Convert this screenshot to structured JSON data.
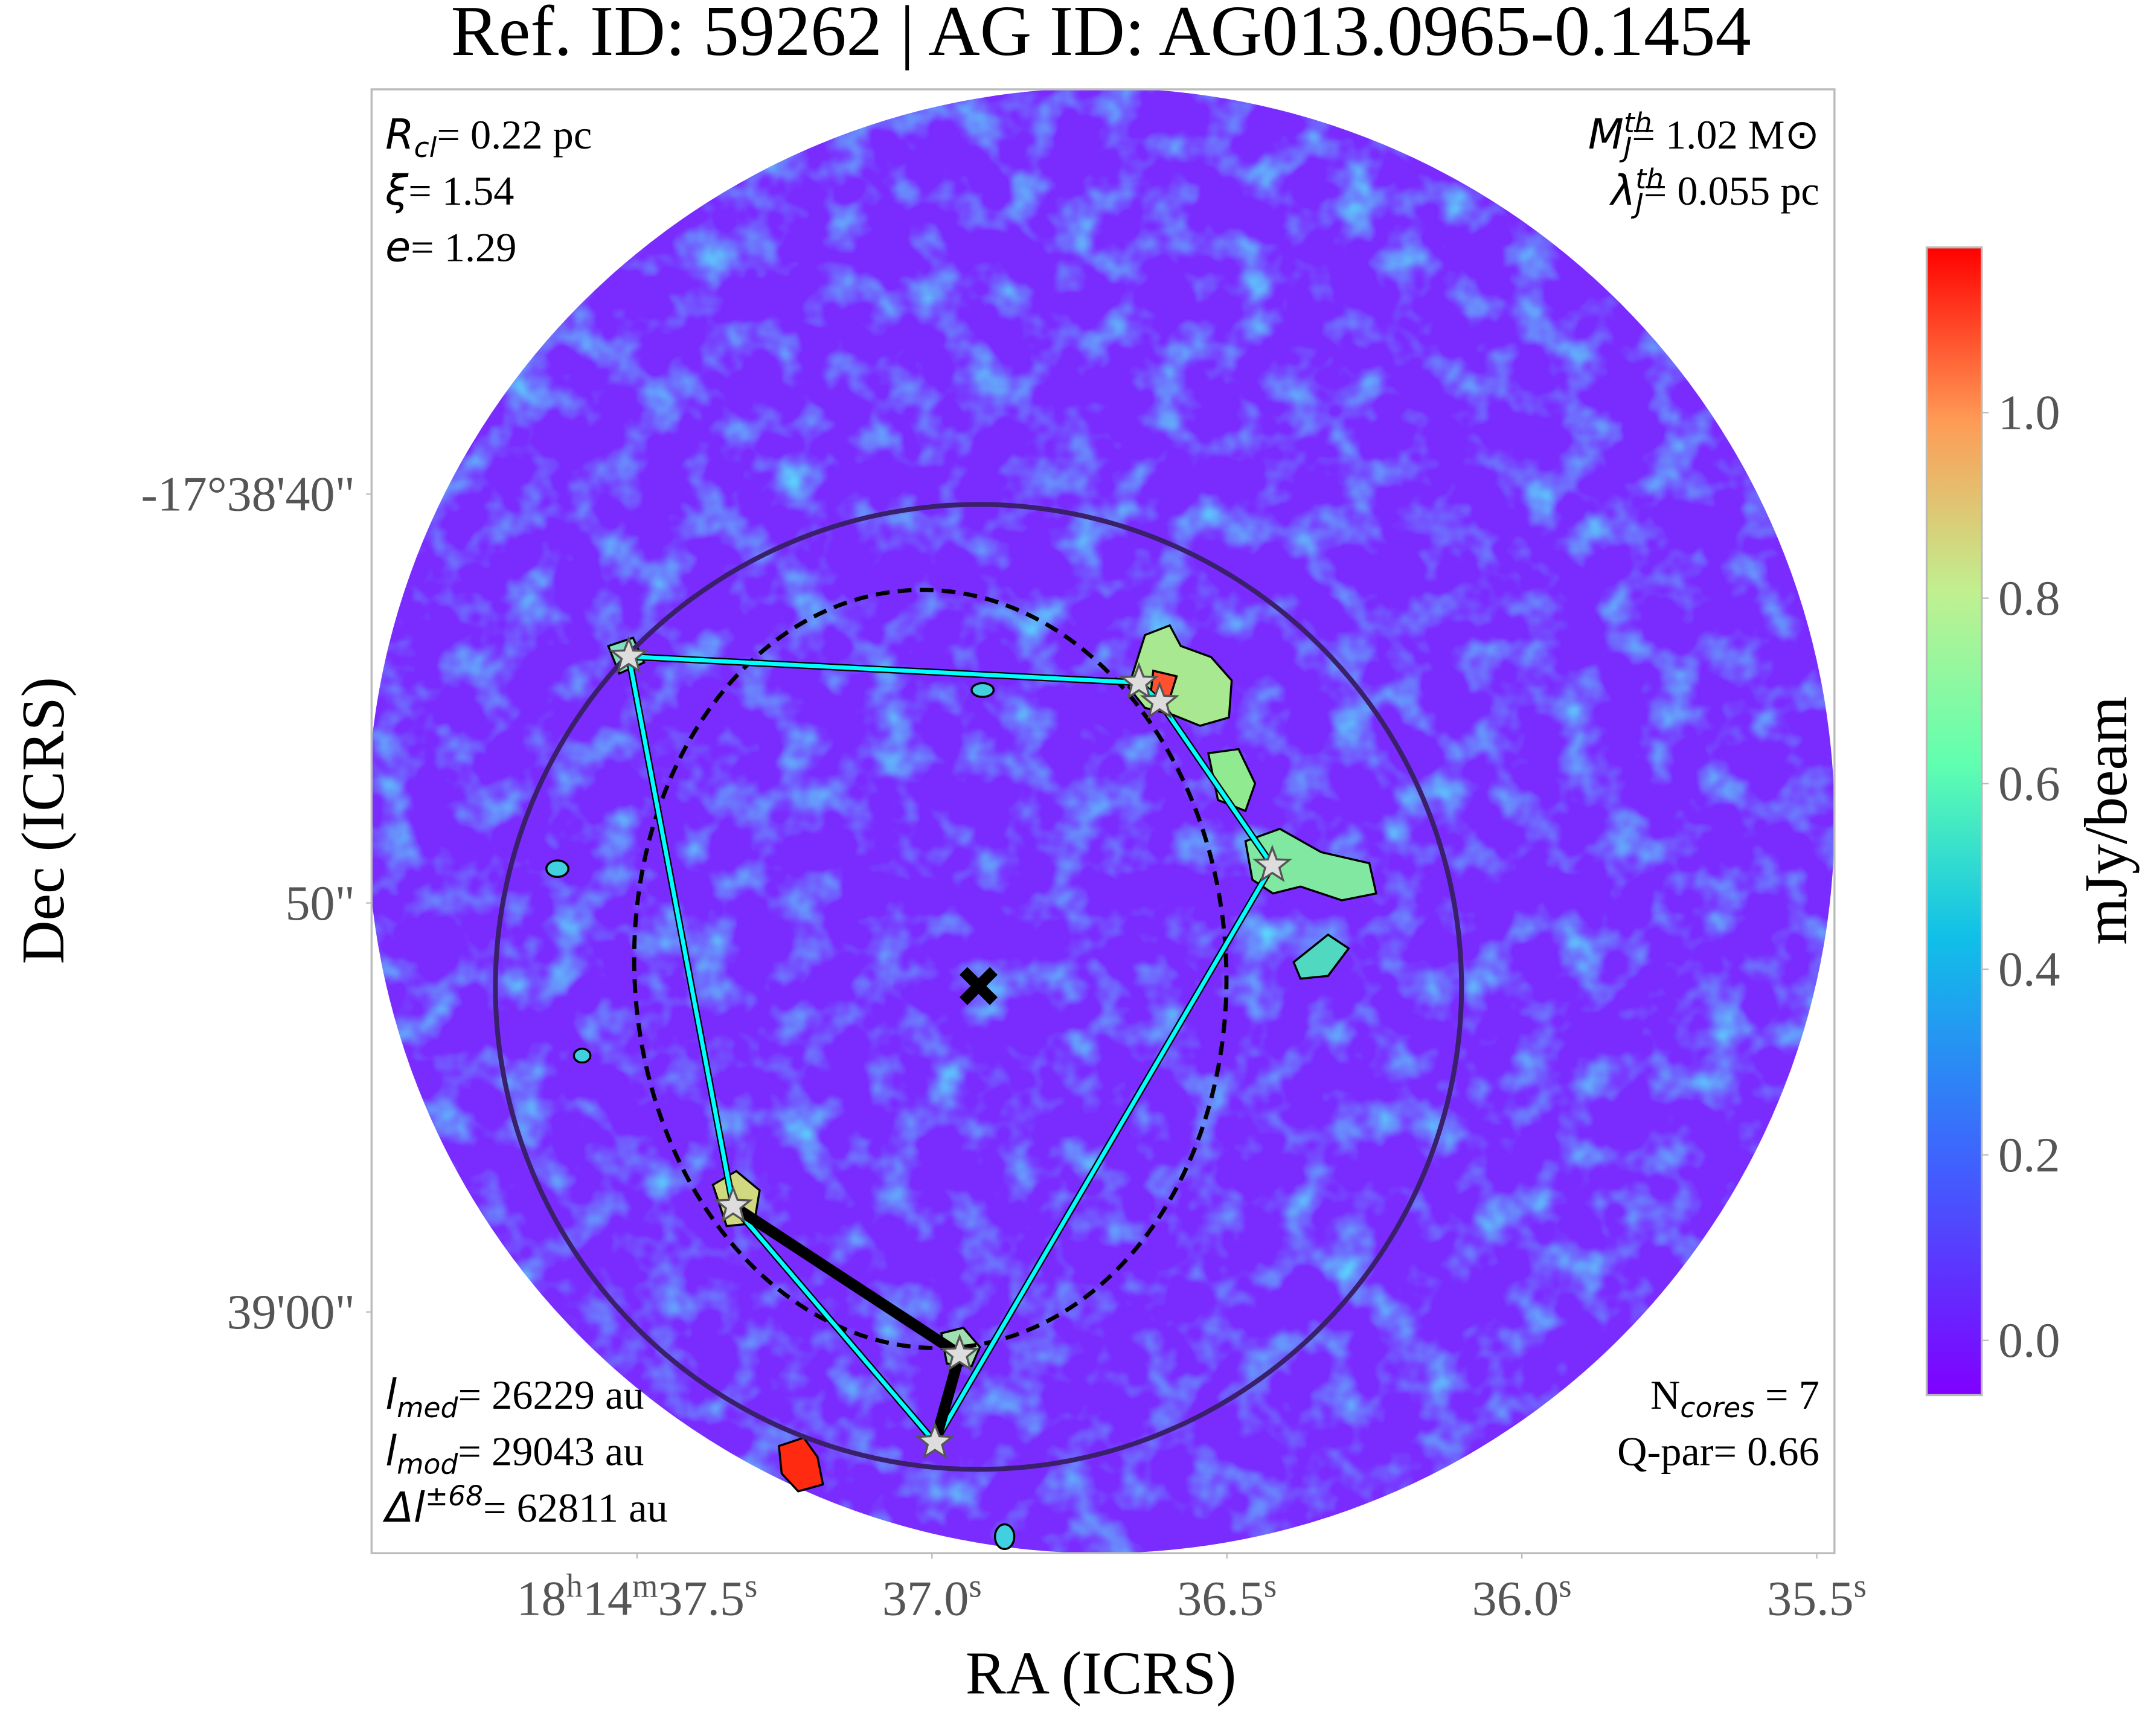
{
  "chart_data": {
    "type": "image",
    "title": "Ref. ID: 59262 | AG ID: AG013.0965-0.1454",
    "x_label": "RA (ICRS)",
    "y_label": "Dec (ICRS)",
    "xlim": [
      37.95,
      35.47
    ],
    "xticks": [
      {
        "value": 37.5,
        "label": "18h14m37.5s"
      },
      {
        "value": 37.0,
        "label": "37.0s"
      },
      {
        "value": 36.5,
        "label": "36.5s"
      },
      {
        "value": 36.0,
        "label": "36.0s"
      },
      {
        "value": 35.5,
        "label": "35.5s"
      }
    ],
    "ylim": [
      65.9,
      30.1
    ],
    "yticks": [
      {
        "value": 40,
        "label": "-17°38'40\""
      },
      {
        "value": 50,
        "label": "50\""
      },
      {
        "value": 60,
        "label": "39'00\""
      }
    ],
    "colorbar": {
      "label": "mJy/beam",
      "lim": [
        -0.059,
        1.178
      ],
      "ticks": [
        {
          "value": 0,
          "label": "0.0"
        },
        {
          "value": 0.2,
          "label": "0.2"
        },
        {
          "value": 0.4,
          "label": "0.4"
        },
        {
          "value": 0.6,
          "label": "0.6"
        },
        {
          "value": 0.8,
          "label": "0.8"
        },
        {
          "value": 1,
          "label": "1.0"
        }
      ]
    },
    "cores": {
      "x": [
        37.514,
        36.649,
        36.614,
        36.423,
        37.337,
        36.953,
        36.995
      ],
      "y": [
        43.97,
        44.61,
        45.08,
        49.08,
        57.41,
        61.04,
        63.19
      ]
    },
    "center": {
      "x": 36.921,
      "y": 52.03
    },
    "hull_edges": [
      [
        0,
        1
      ],
      [
        1,
        2
      ],
      [
        2,
        3
      ],
      [
        3,
        6
      ],
      [
        6,
        4
      ],
      [
        4,
        0
      ]
    ],
    "mst_edges": [
      [
        4,
        5
      ],
      [
        5,
        6
      ]
    ],
    "annotations": {
      "top_left": [
        [
          {
            "text": "R",
            "style": "italic"
          },
          {
            "text": "cl",
            "style": "sub"
          },
          {
            "text": "= 0.22 pc"
          }
        ],
        [
          {
            "text": "ξ",
            "style": "italic"
          },
          {
            "text": "= 1.54"
          }
        ],
        [
          {
            "text": "e",
            "style": "italic"
          },
          {
            "text": "= 1.29"
          }
        ]
      ],
      "top_right": [
        [
          {
            "text": "M",
            "style": "italic"
          },
          {
            "text": "th",
            "style": "sup"
          },
          {
            "text": "J",
            "style": "sub-stack"
          },
          {
            "text": "= 1.02 M⊙"
          }
        ],
        [
          {
            "text": "λ",
            "style": "italic"
          },
          {
            "text": "th",
            "style": "sup"
          },
          {
            "text": "J",
            "style": "sub-stack"
          },
          {
            "text": "= 0.055 pc"
          }
        ]
      ],
      "bottom_left": [
        [
          {
            "text": "l",
            "style": "italic"
          },
          {
            "text": "med",
            "style": "sub"
          },
          {
            "text": "= 26229 au"
          }
        ],
        [
          {
            "text": "l",
            "style": "italic"
          },
          {
            "text": "mod",
            "style": "sub"
          },
          {
            "text": "= 29043 au"
          }
        ],
        [
          {
            "text": "Δl",
            "style": "italic"
          },
          {
            "text": "±68",
            "style": "sup"
          },
          {
            "text": "= 62811 au"
          }
        ]
      ],
      "bottom_right": [
        [
          {
            "text": "N"
          },
          {
            "text": "cores",
            "style": "sub"
          },
          {
            "text": " = 7"
          }
        ],
        [
          {
            "text": "Q-par= 0.66"
          }
        ]
      ]
    }
  }
}
